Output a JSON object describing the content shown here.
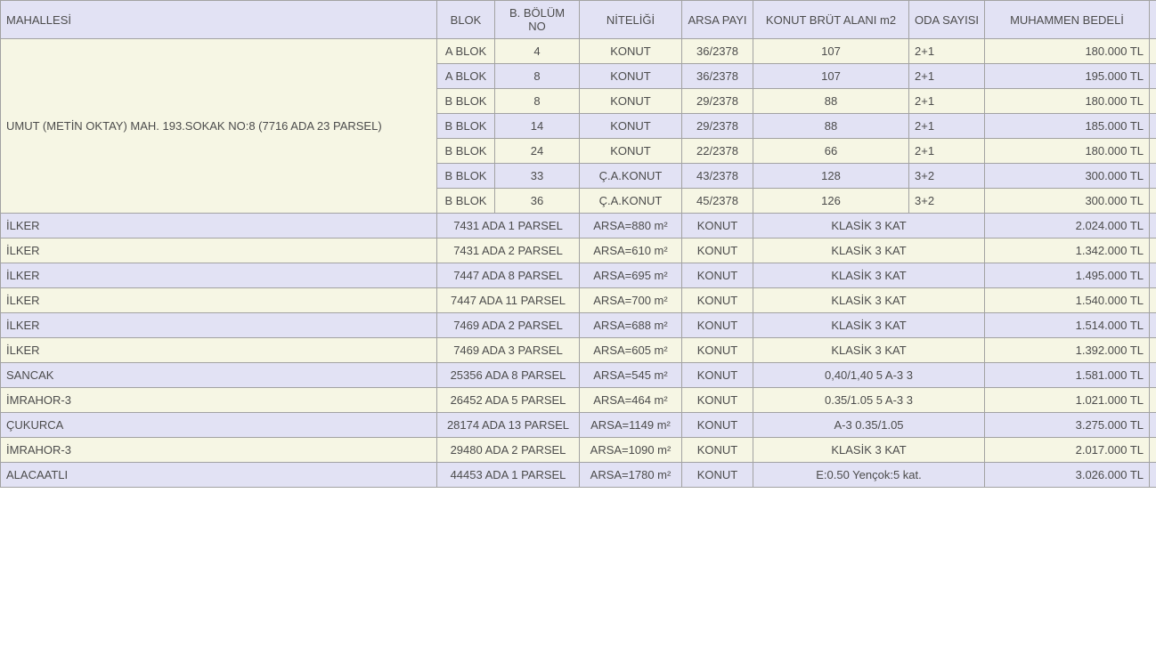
{
  "colors": {
    "header_bg": "#e2e2f4",
    "row_odd": "#f6f6e4",
    "row_even": "#e2e2f4",
    "border": "#a2a2a2",
    "text": "#4c4c4c"
  },
  "table": {
    "headers": [
      "MAHALLESİ",
      "BLOK",
      "B. BÖLÜM NO",
      "NİTELİĞİ",
      "ARSA PAYI",
      "KONUT BRÜT ALANI m2",
      "ODA SAYISI",
      "MUHAMMEN BEDELİ"
    ],
    "umut_label": "UMUT (METİN OKTAY) MAH. 193.SOKAK NO:8 (7716 ADA 23 PARSEL)",
    "umut_rows": [
      {
        "blok": "A BLOK",
        "bolum_no": "4",
        "nitelik": "KONUT",
        "arsa_payi": "36/2378",
        "brut": "107",
        "oda": "2+1",
        "bedel": "180.000 TL"
      },
      {
        "blok": "A BLOK",
        "bolum_no": "8",
        "nitelik": "KONUT",
        "arsa_payi": "36/2378",
        "brut": "107",
        "oda": "2+1",
        "bedel": "195.000 TL"
      },
      {
        "blok": "B BLOK",
        "bolum_no": "8",
        "nitelik": "KONUT",
        "arsa_payi": "29/2378",
        "brut": "88",
        "oda": "2+1",
        "bedel": "180.000 TL"
      },
      {
        "blok": "B BLOK",
        "bolum_no": "14",
        "nitelik": "KONUT",
        "arsa_payi": "29/2378",
        "brut": "88",
        "oda": "2+1",
        "bedel": "185.000 TL"
      },
      {
        "blok": "B BLOK",
        "bolum_no": "24",
        "nitelik": "KONUT",
        "arsa_payi": "22/2378",
        "brut": "66",
        "oda": "2+1",
        "bedel": "180.000 TL"
      },
      {
        "blok": "B BLOK",
        "bolum_no": "33",
        "nitelik": "Ç.A.KONUT",
        "arsa_payi": "43/2378",
        "brut": "128",
        "oda": "3+2",
        "bedel": "300.000 TL"
      },
      {
        "blok": "B BLOK",
        "bolum_no": "36",
        "nitelik": "Ç.A.KONUT",
        "arsa_payi": "45/2378",
        "brut": "126",
        "oda": "3+2",
        "bedel": "300.000 TL"
      }
    ],
    "parsel_rows": [
      {
        "mahalle": "İLKER",
        "parsel": "7431 ADA 1 PARSEL",
        "arsa": "ARSA=880 m²",
        "nitelik": "KONUT",
        "det": "KLASİK 3 KAT",
        "bedel": "2.024.000 TL"
      },
      {
        "mahalle": "İLKER",
        "parsel": "7431 ADA 2 PARSEL",
        "arsa": "ARSA=610 m²",
        "nitelik": "KONUT",
        "det": "KLASİK 3 KAT",
        "bedel": "1.342.000 TL"
      },
      {
        "mahalle": "İLKER",
        "parsel": "7447 ADA 8 PARSEL",
        "arsa": "ARSA=695 m²",
        "nitelik": "KONUT",
        "det": "KLASİK 3 KAT",
        "bedel": "1.495.000 TL"
      },
      {
        "mahalle": "İLKER",
        "parsel": "7447 ADA 11 PARSEL",
        "arsa": "ARSA=700 m²",
        "nitelik": "KONUT",
        "det": "KLASİK 3 KAT",
        "bedel": "1.540.000 TL"
      },
      {
        "mahalle": "İLKER",
        "parsel": "7469 ADA 2 PARSEL",
        "arsa": "ARSA=688 m²",
        "nitelik": "KONUT",
        "det": "KLASİK 3 KAT",
        "bedel": "1.514.000 TL"
      },
      {
        "mahalle": "İLKER",
        "parsel": "7469 ADA 3 PARSEL",
        "arsa": "ARSA=605 m²",
        "nitelik": "KONUT",
        "det": "KLASİK 3 KAT",
        "bedel": "1.392.000 TL"
      },
      {
        "mahalle": "SANCAK",
        "parsel": "25356 ADA 8 PARSEL",
        "arsa": "ARSA=545 m²",
        "nitelik": "KONUT",
        "det": "0,40/1,40   5 A-3 3",
        "bedel": "1.581.000 TL"
      },
      {
        "mahalle": "İMRAHOR-3",
        "parsel": "26452 ADA 5 PARSEL",
        "arsa": "ARSA=464 m²",
        "nitelik": "KONUT",
        "det": "0.35/1.05  5 A-3 3",
        "bedel": "1.021.000 TL"
      },
      {
        "mahalle": "ÇUKURCA",
        "parsel": "28174 ADA 13 PARSEL",
        "arsa": "ARSA=1149 m²",
        "nitelik": "KONUT",
        "det": "A-3 0.35/1.05",
        "bedel": "3.275.000 TL"
      },
      {
        "mahalle": "İMRAHOR-3",
        "parsel": "29480 ADA 2 PARSEL",
        "arsa": "ARSA=1090 m²",
        "nitelik": "KONUT",
        "det": "KLASİK 3 KAT",
        "bedel": "2.017.000 TL"
      },
      {
        "mahalle": "ALACAATLI",
        "parsel": "44453 ADA 1 PARSEL",
        "arsa": "ARSA=1780 m²",
        "nitelik": "KONUT",
        "det": "E:0.50 Yençok:5 kat.",
        "bedel": "3.026.000 TL"
      }
    ]
  }
}
